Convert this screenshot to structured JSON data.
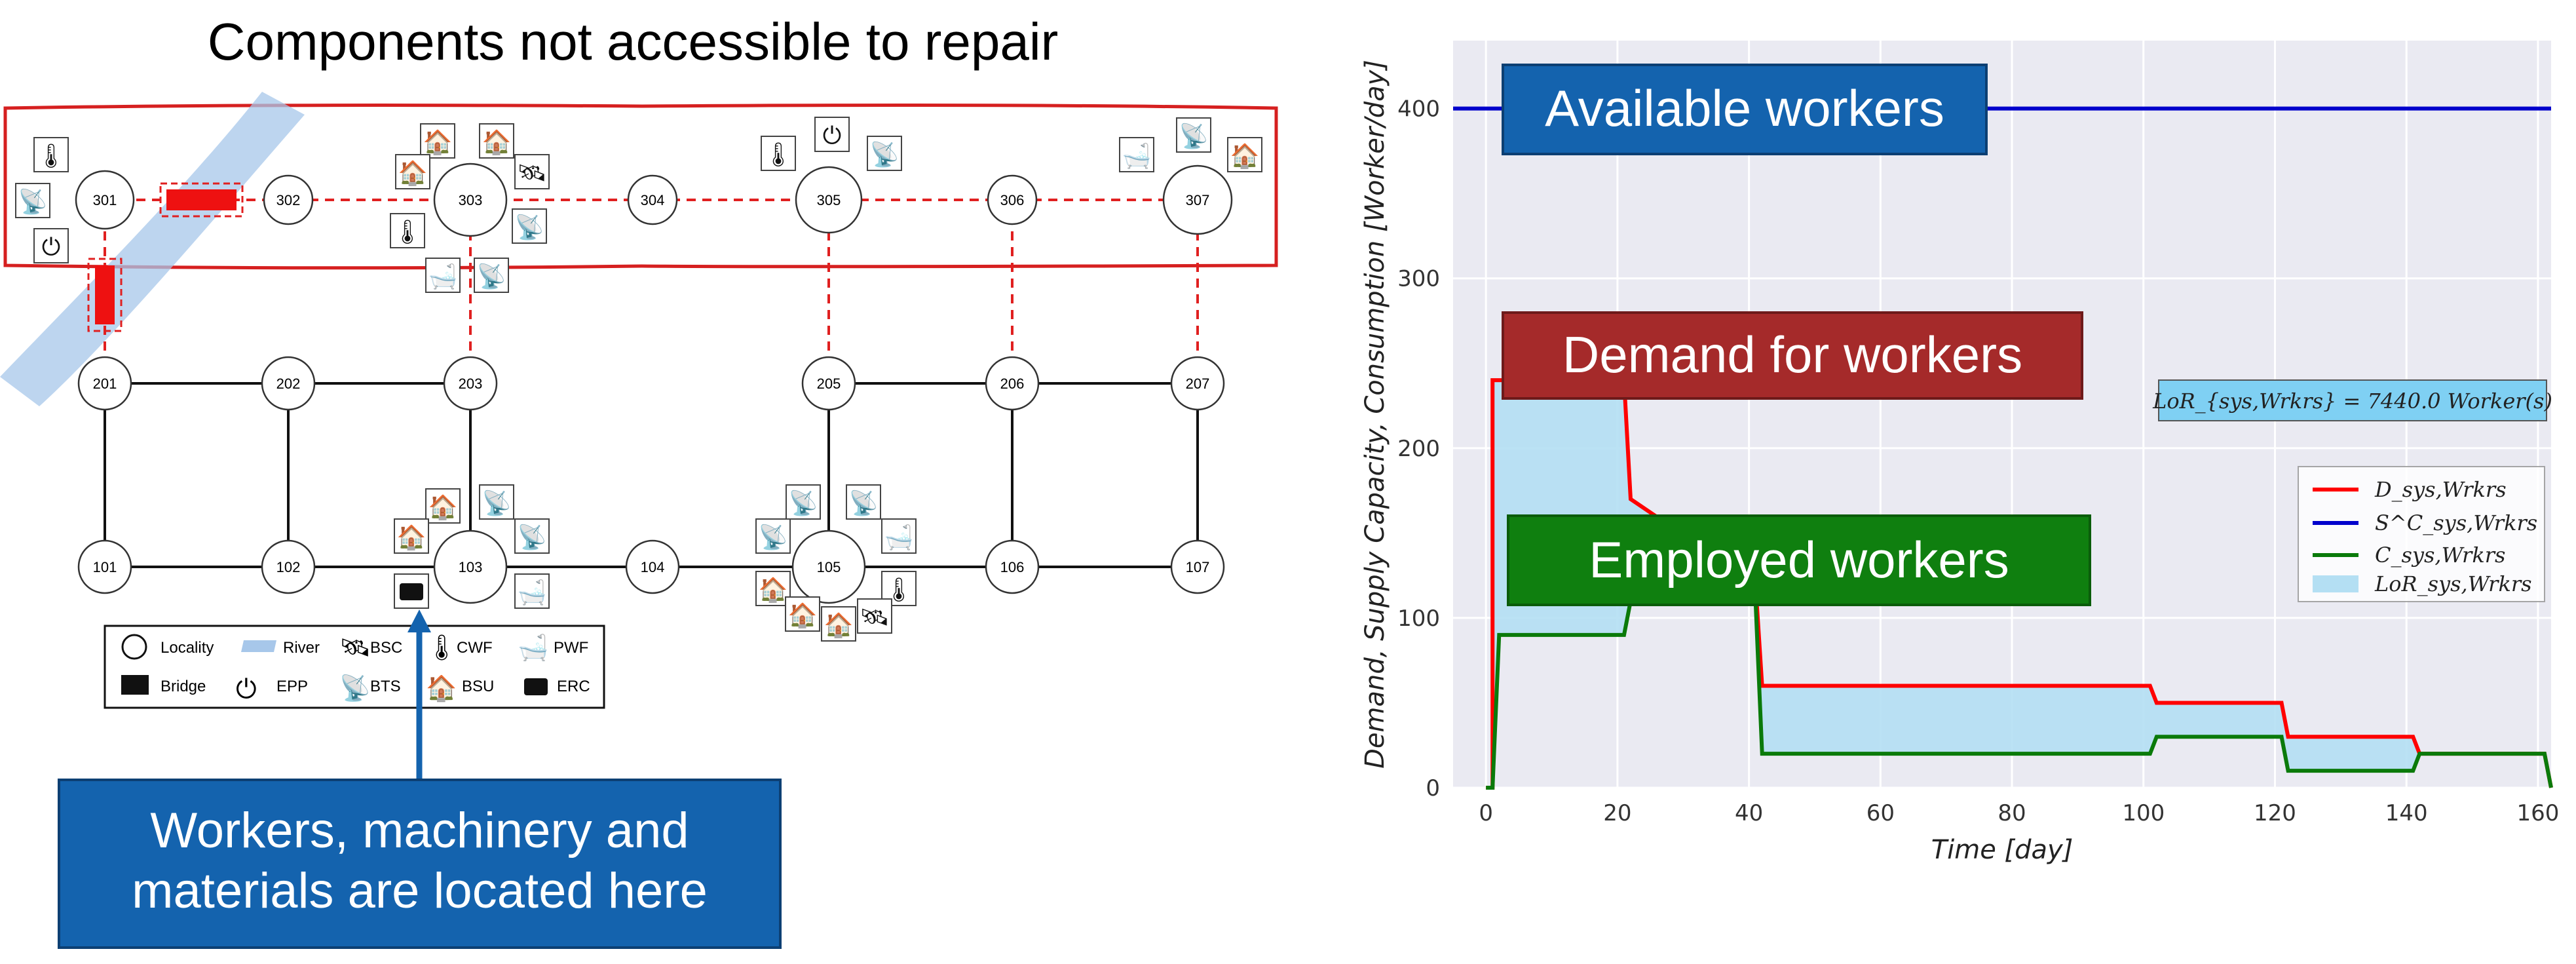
{
  "diagram": {
    "title": "Components not accessible to repair",
    "callout": "Workers, machinery and materials are located here",
    "nodes": [
      {
        "id": "301",
        "label": "301"
      },
      {
        "id": "302",
        "label": "302"
      },
      {
        "id": "303",
        "label": "303"
      },
      {
        "id": "304",
        "label": "304"
      },
      {
        "id": "305",
        "label": "305"
      },
      {
        "id": "306",
        "label": "306"
      },
      {
        "id": "307",
        "label": "307"
      },
      {
        "id": "201",
        "label": "201"
      },
      {
        "id": "202",
        "label": "202"
      },
      {
        "id": "203",
        "label": "203"
      },
      {
        "id": "205",
        "label": "205"
      },
      {
        "id": "206",
        "label": "206"
      },
      {
        "id": "207",
        "label": "207"
      },
      {
        "id": "101",
        "label": "101"
      },
      {
        "id": "102",
        "label": "102"
      },
      {
        "id": "103",
        "label": "103"
      },
      {
        "id": "104",
        "label": "104"
      },
      {
        "id": "105",
        "label": "105"
      },
      {
        "id": "106",
        "label": "106"
      },
      {
        "id": "107",
        "label": "107"
      }
    ],
    "legend": {
      "locality": "Locality",
      "river": "River",
      "bsc": "BSC",
      "cwf": "CWF",
      "pwf": "PWF",
      "bridge": "Bridge",
      "epp": "EPP",
      "bts": "BTS",
      "bsu": "BSU",
      "erc": "ERC"
    }
  },
  "chart_data": {
    "type": "line",
    "xlabel": "Time [day]",
    "ylabel": "Demand, Supply Capacity, Consumption [Worker/day]",
    "xlim": [
      -5,
      162
    ],
    "ylim": [
      0,
      440
    ],
    "xticks": [
      0,
      20,
      40,
      60,
      80,
      100,
      120,
      140,
      160
    ],
    "yticks": [
      0,
      100,
      200,
      300,
      400
    ],
    "grid": true,
    "legend_position": "right",
    "lor_box": "LoR_{sys,Wrkrs} = 7440.0 Worker(s)",
    "annotations": {
      "available": "Available workers",
      "demand": "Demand for workers",
      "employed": "Employed workers"
    },
    "series": [
      {
        "name": "D_sys,Wrkrs",
        "color": "#ff0000",
        "x": [
          0,
          1,
          1,
          21,
          22,
          41,
          42,
          101,
          102,
          121,
          122,
          141,
          142,
          161,
          162
        ],
        "y": [
          0,
          0,
          240,
          240,
          170,
          120,
          60,
          60,
          50,
          50,
          30,
          30,
          20,
          20,
          0
        ]
      },
      {
        "name": "S^C_sys,Wrkrs",
        "color": "#0000cc",
        "x": [
          -5,
          162
        ],
        "y": [
          400,
          400
        ]
      },
      {
        "name": "C_sys,Wrkrs",
        "color": "#0a7a0a",
        "x": [
          0,
          1,
          2,
          21,
          22,
          41,
          42,
          101,
          102,
          121,
          122,
          141,
          142,
          161,
          162
        ],
        "y": [
          0,
          0,
          90,
          90,
          110,
          110,
          20,
          20,
          30,
          30,
          10,
          10,
          20,
          20,
          0
        ]
      }
    ],
    "fill_label": "LoR_sys,Wrkrs"
  }
}
